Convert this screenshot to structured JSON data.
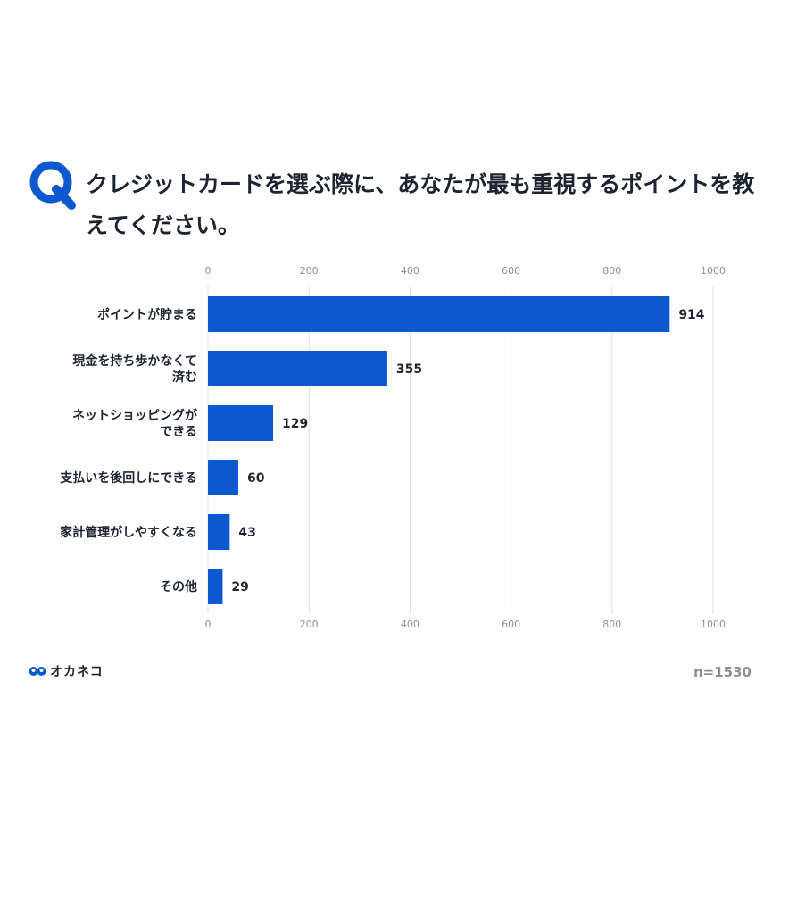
{
  "question": {
    "badge": "Q",
    "text": "クレジットカードを選ぶ際に、あなたが最も重視するポイントを教えてください。"
  },
  "brand": {
    "logo_text": "オカネコ",
    "accent": "#0c59cf"
  },
  "sample_size": "n=1530",
  "chart_data": {
    "type": "bar",
    "orientation": "horizontal",
    "categories": [
      [
        "ポイントが貯まる"
      ],
      [
        "現金を持ち歩かなくて",
        "済む"
      ],
      [
        "ネットショッピングが",
        "できる"
      ],
      [
        "支払いを後回しにできる"
      ],
      [
        "家計管理がしやすくなる"
      ],
      [
        "その他"
      ]
    ],
    "values": [
      914,
      355,
      129,
      60,
      43,
      29
    ],
    "xlim": [
      0,
      1000
    ],
    "ticks": [
      0,
      200,
      400,
      600,
      800,
      1000
    ],
    "tick_labels_top": true,
    "tick_labels_bottom": true,
    "grid": true,
    "bar_color": "#0c59cf",
    "grid_color": "#dcdfe4",
    "tick_color": "#8a9099",
    "label_color": "#1b2430"
  }
}
